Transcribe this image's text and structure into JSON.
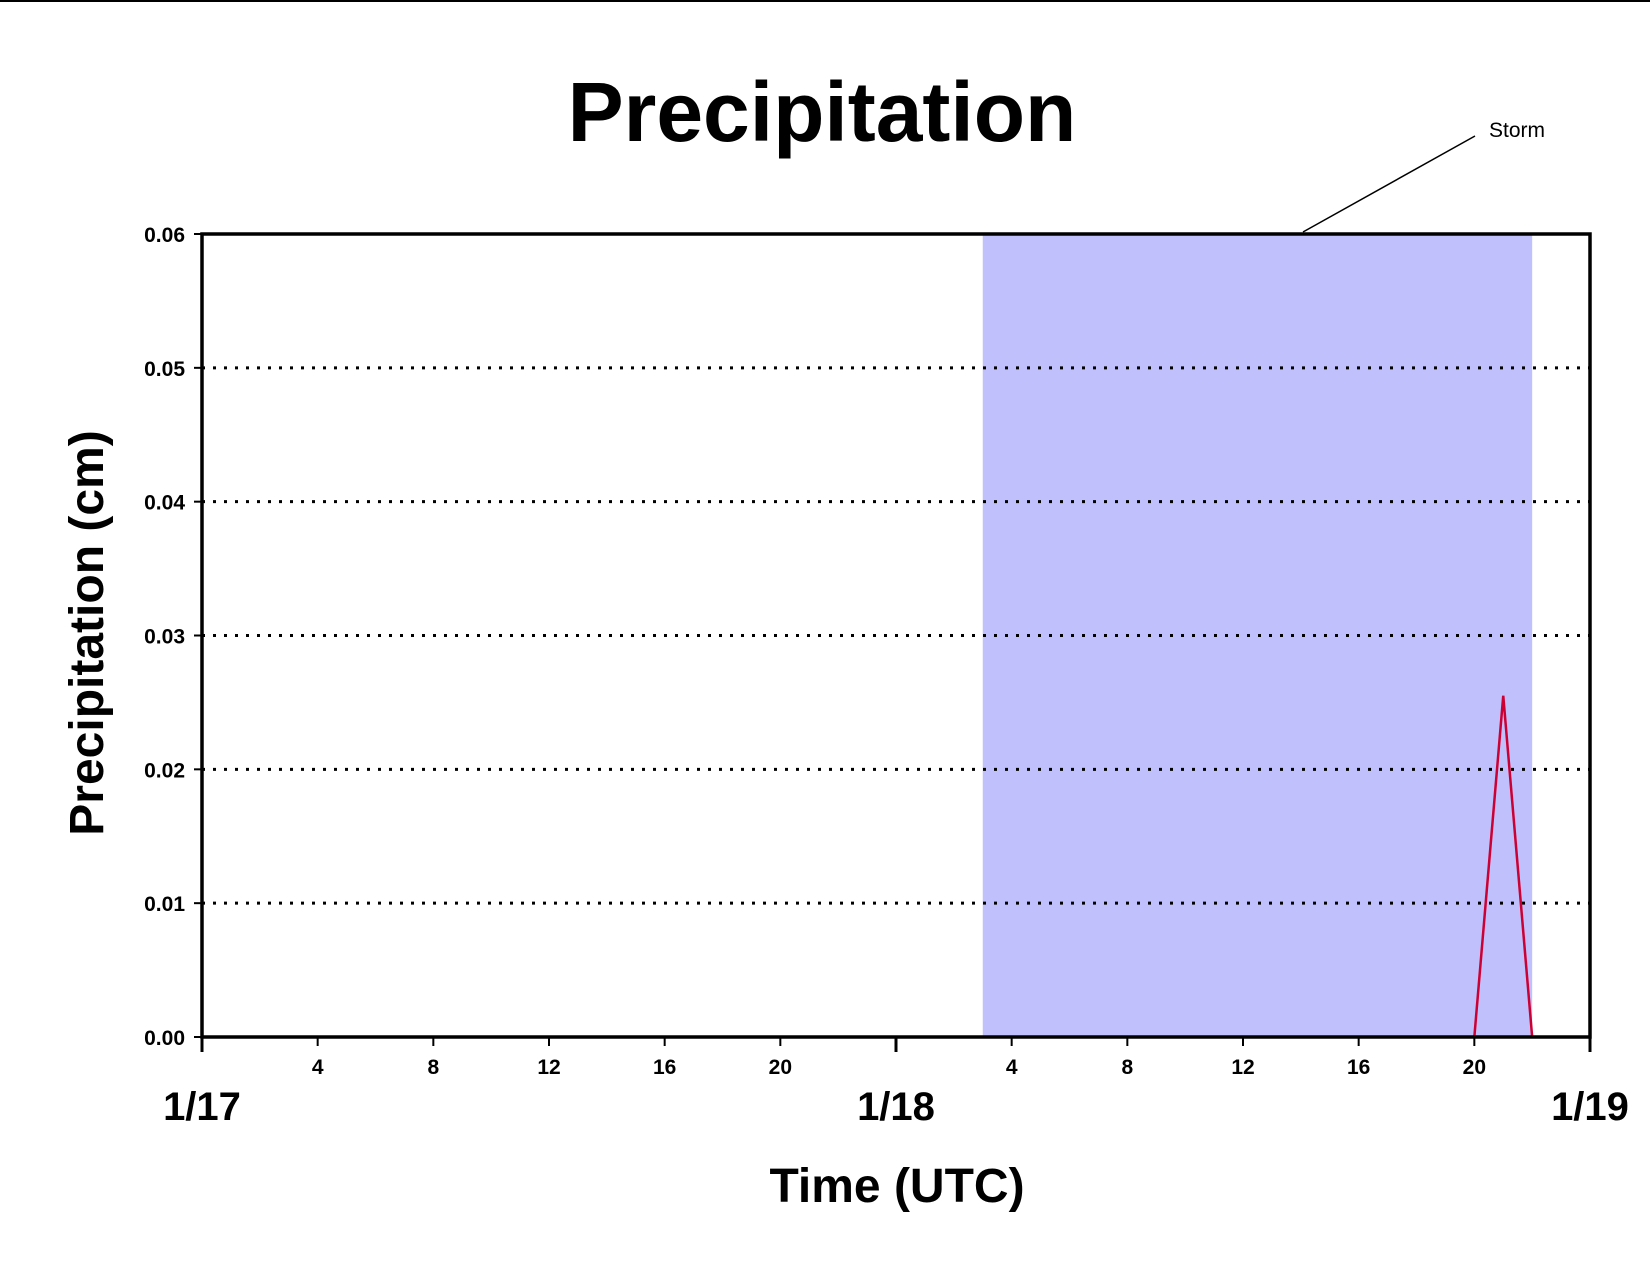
{
  "chart_data": {
    "type": "line",
    "title": "Precipitation",
    "xlabel": "Time (UTC)",
    "ylabel": "Precipitation (cm)",
    "xlim_hours": [
      0,
      48
    ],
    "ylim": [
      0,
      0.06
    ],
    "yticks": [
      "0.00",
      "0.01",
      "0.02",
      "0.03",
      "0.04",
      "0.05",
      "0.06"
    ],
    "hour_ticks": [
      {
        "hour": 4,
        "label": "4"
      },
      {
        "hour": 8,
        "label": "8"
      },
      {
        "hour": 12,
        "label": "12"
      },
      {
        "hour": 16,
        "label": "16"
      },
      {
        "hour": 20,
        "label": "20"
      },
      {
        "hour": 28,
        "label": "4"
      },
      {
        "hour": 32,
        "label": "8"
      },
      {
        "hour": 36,
        "label": "12"
      },
      {
        "hour": 40,
        "label": "16"
      },
      {
        "hour": 44,
        "label": "20"
      }
    ],
    "date_ticks": [
      {
        "hour": 0,
        "label": "1/17"
      },
      {
        "hour": 24,
        "label": "1/18"
      },
      {
        "hour": 48,
        "label": "1/19"
      }
    ],
    "grid": {
      "horizontal": true,
      "style": "dotted"
    },
    "annotation": {
      "label": "Storm",
      "shaded_range_hours": [
        27,
        46
      ],
      "color": "#c0c0fc"
    },
    "series": [
      {
        "color": "#cc0033",
        "x_hours": [
          0,
          44,
          45,
          46,
          48
        ],
        "y": [
          0,
          0,
          0.0255,
          0,
          0
        ]
      }
    ]
  }
}
